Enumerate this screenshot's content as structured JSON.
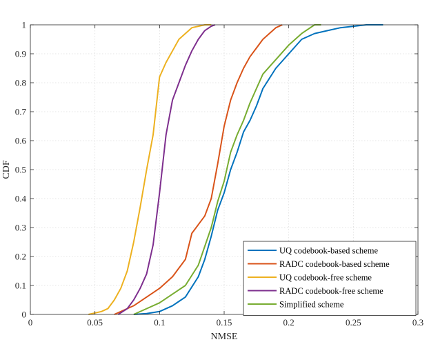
{
  "chart_data": {
    "type": "line",
    "title": "",
    "xlabel": "NMSE",
    "ylabel": "CDF",
    "xlim": [
      0,
      0.3
    ],
    "ylim": [
      0,
      1
    ],
    "xticks": [
      0,
      0.05,
      0.1,
      0.15,
      0.2,
      0.25,
      0.3
    ],
    "xtick_labels": [
      "0",
      "0.05",
      "0.1",
      "0.15",
      "0.2",
      "0.25",
      "0.3"
    ],
    "yticks": [
      0,
      0.1,
      0.2,
      0.3,
      0.4,
      0.5,
      0.6,
      0.7,
      0.8,
      0.9,
      1
    ],
    "ytick_labels": [
      "0",
      "0.1",
      "0.2",
      "0.3",
      "0.4",
      "0.5",
      "0.6",
      "0.7",
      "0.8",
      "0.9",
      "1"
    ],
    "grid": true,
    "legend_position": "bottom-right",
    "series": [
      {
        "name": "UQ codebook-based scheme",
        "color": "#0072BD",
        "x": [
          0.08,
          0.09,
          0.1,
          0.11,
          0.12,
          0.13,
          0.135,
          0.14,
          0.145,
          0.15,
          0.155,
          0.16,
          0.165,
          0.17,
          0.175,
          0.18,
          0.19,
          0.2,
          0.21,
          0.22,
          0.23,
          0.24,
          0.25,
          0.26,
          0.273
        ],
        "y": [
          0.0,
          0.003,
          0.01,
          0.03,
          0.06,
          0.13,
          0.19,
          0.27,
          0.36,
          0.42,
          0.5,
          0.56,
          0.63,
          0.67,
          0.72,
          0.78,
          0.85,
          0.9,
          0.95,
          0.97,
          0.98,
          0.99,
          0.995,
          1.0,
          1.0
        ]
      },
      {
        "name": "RADC codebook-based scheme",
        "color": "#D95319",
        "x": [
          0.065,
          0.08,
          0.09,
          0.1,
          0.11,
          0.12,
          0.125,
          0.13,
          0.135,
          0.14,
          0.145,
          0.15,
          0.155,
          0.16,
          0.165,
          0.17,
          0.175,
          0.18,
          0.185,
          0.19,
          0.195
        ],
        "y": [
          0.0,
          0.03,
          0.06,
          0.09,
          0.13,
          0.19,
          0.28,
          0.31,
          0.34,
          0.4,
          0.52,
          0.65,
          0.74,
          0.8,
          0.85,
          0.89,
          0.92,
          0.95,
          0.97,
          0.99,
          1.0
        ]
      },
      {
        "name": "UQ codebook-free scheme",
        "color": "#EDB120",
        "x": [
          0.045,
          0.055,
          0.06,
          0.065,
          0.07,
          0.075,
          0.08,
          0.085,
          0.09,
          0.095,
          0.1,
          0.105,
          0.11,
          0.115,
          0.12,
          0.125,
          0.13,
          0.135,
          0.14
        ],
        "y": [
          0.0,
          0.01,
          0.02,
          0.05,
          0.09,
          0.15,
          0.25,
          0.37,
          0.5,
          0.62,
          0.82,
          0.87,
          0.91,
          0.95,
          0.97,
          0.99,
          0.995,
          1.0,
          1.0
        ]
      },
      {
        "name": "RADC codebook-free scheme",
        "color": "#7E2F8E",
        "x": [
          0.068,
          0.075,
          0.08,
          0.085,
          0.09,
          0.095,
          0.1,
          0.105,
          0.11,
          0.115,
          0.12,
          0.125,
          0.13,
          0.135,
          0.14,
          0.143
        ],
        "y": [
          0.0,
          0.02,
          0.05,
          0.09,
          0.14,
          0.24,
          0.42,
          0.62,
          0.74,
          0.8,
          0.86,
          0.91,
          0.95,
          0.98,
          0.995,
          1.0
        ]
      },
      {
        "name": "Simplified scheme",
        "color": "#77AC30",
        "x": [
          0.08,
          0.09,
          0.1,
          0.11,
          0.12,
          0.13,
          0.14,
          0.145,
          0.15,
          0.155,
          0.16,
          0.165,
          0.17,
          0.175,
          0.18,
          0.19,
          0.2,
          0.21,
          0.22,
          0.225
        ],
        "y": [
          0.0,
          0.02,
          0.04,
          0.07,
          0.1,
          0.17,
          0.3,
          0.39,
          0.46,
          0.56,
          0.62,
          0.67,
          0.73,
          0.78,
          0.83,
          0.88,
          0.93,
          0.97,
          1.0,
          1.0
        ]
      }
    ]
  }
}
